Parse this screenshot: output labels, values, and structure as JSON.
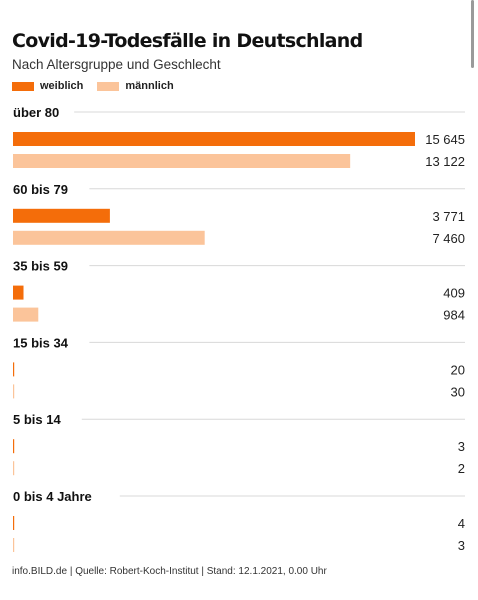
{
  "chart_data": {
    "type": "bar",
    "orientation": "horizontal",
    "title": "Covid-19-Todesfälle in Deutschland",
    "subtitle": "Nach Altersgruppe und Geschlecht",
    "categories": [
      "über 80",
      "60 bis 79",
      "35 bis 59",
      "15 bis 34",
      "5 bis 14",
      "0 bis 4 Jahre"
    ],
    "series": [
      {
        "name": "weiblich",
        "color": "#f46d0a",
        "values": [
          15645,
          3771,
          409,
          20,
          3,
          4
        ],
        "labels": [
          "15 645",
          "3 771",
          "409",
          "20",
          "3",
          "4"
        ]
      },
      {
        "name": "männlich",
        "color": "#fbc49a",
        "values": [
          13122,
          7460,
          984,
          30,
          2,
          3
        ],
        "labels": [
          "13 122",
          "7 460",
          "984",
          "30",
          "2",
          "3"
        ]
      }
    ],
    "xlim": [
      0,
      15645
    ],
    "legend_position": "top-left",
    "grid": false
  },
  "footer": "info.BILD.de | Quelle: Robert-Koch-Institut | Stand: 12.1.2021, 0.00 Uhr"
}
